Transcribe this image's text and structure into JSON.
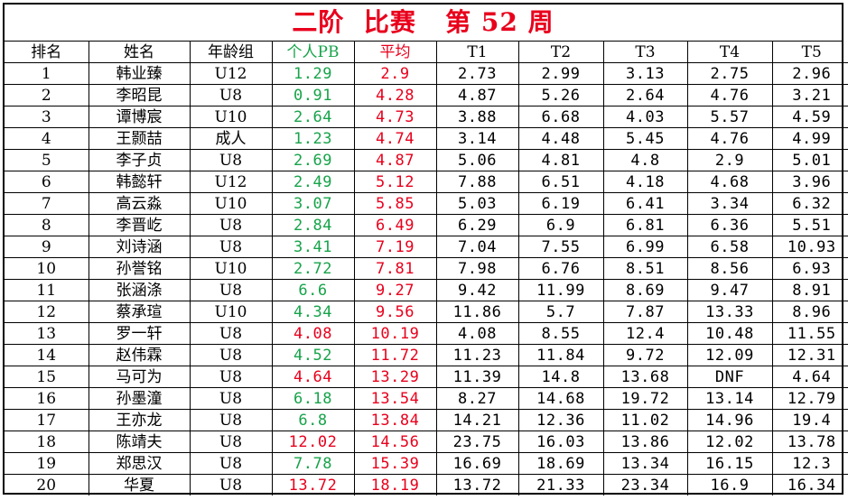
{
  "title": "二阶  比赛   第 52 周",
  "colors": {
    "title": "#e8001c",
    "pb": "#17a34a",
    "avg": "#e8001c",
    "grid": "#000000"
  },
  "headers": [
    "排名",
    "姓名",
    "年龄组",
    "个人PB",
    "平均",
    "T1",
    "T2",
    "T3",
    "T4",
    "T5"
  ],
  "rows": [
    {
      "rank": "1",
      "name": "韩业臻",
      "age": "U12",
      "pb": "1.29",
      "pb_color": "green",
      "avg": "2.9",
      "t1": "2.73",
      "t2": "2.99",
      "t3": "3.13",
      "t4": "2.75",
      "t5": "2.96"
    },
    {
      "rank": "2",
      "name": "李昭昆",
      "age": "U8",
      "pb": "0.91",
      "pb_color": "green",
      "avg": "4.28",
      "t1": "4.87",
      "t2": "5.26",
      "t3": "2.64",
      "t4": "4.76",
      "t5": "3.21"
    },
    {
      "rank": "3",
      "name": "谭博宸",
      "age": "U10",
      "pb": "2.64",
      "pb_color": "green",
      "avg": "4.73",
      "t1": "3.88",
      "t2": "6.68",
      "t3": "4.03",
      "t4": "5.57",
      "t5": "4.59"
    },
    {
      "rank": "4",
      "name": "王颢喆",
      "age": "成人",
      "pb": "1.23",
      "pb_color": "green",
      "avg": "4.74",
      "t1": "3.14",
      "t2": "4.48",
      "t3": "5.45",
      "t4": "4.76",
      "t5": "4.99"
    },
    {
      "rank": "5",
      "name": "李子贞",
      "age": "U8",
      "pb": "2.69",
      "pb_color": "green",
      "avg": "4.87",
      "t1": "5.06",
      "t2": "4.81",
      "t3": "4.8",
      "t4": "2.9",
      "t5": "5.01"
    },
    {
      "rank": "6",
      "name": "韩懿轩",
      "age": "U12",
      "pb": "2.49",
      "pb_color": "green",
      "avg": "5.12",
      "t1": "7.88",
      "t2": "6.51",
      "t3": "4.18",
      "t4": "4.68",
      "t5": "3.96"
    },
    {
      "rank": "7",
      "name": "高云淼",
      "age": "U10",
      "pb": "3.07",
      "pb_color": "green",
      "avg": "5.85",
      "t1": "5.03",
      "t2": "6.19",
      "t3": "6.41",
      "t4": "3.34",
      "t5": "6.32"
    },
    {
      "rank": "8",
      "name": "李晋屹",
      "age": "U8",
      "pb": "2.84",
      "pb_color": "green",
      "avg": "6.49",
      "t1": "6.29",
      "t2": "6.9",
      "t3": "6.81",
      "t4": "6.36",
      "t5": "5.51"
    },
    {
      "rank": "9",
      "name": "刘诗涵",
      "age": "U8",
      "pb": "3.41",
      "pb_color": "green",
      "avg": "7.19",
      "t1": "7.04",
      "t2": "7.55",
      "t3": "6.99",
      "t4": "6.58",
      "t5": "10.93"
    },
    {
      "rank": "10",
      "name": "孙誉铭",
      "age": "U10",
      "pb": "2.72",
      "pb_color": "green",
      "avg": "7.81",
      "t1": "7.98",
      "t2": "6.76",
      "t3": "8.51",
      "t4": "8.56",
      "t5": "6.93"
    },
    {
      "rank": "11",
      "name": "张涵涤",
      "age": "U8",
      "pb": "6.6",
      "pb_color": "green",
      "avg": "9.27",
      "t1": "9.42",
      "t2": "11.99",
      "t3": "8.69",
      "t4": "9.47",
      "t5": "8.91"
    },
    {
      "rank": "12",
      "name": "蔡承瑄",
      "age": "U10",
      "pb": "4.34",
      "pb_color": "green",
      "avg": "9.56",
      "t1": "11.86",
      "t2": "5.7",
      "t3": "7.87",
      "t4": "13.33",
      "t5": "8.96"
    },
    {
      "rank": "13",
      "name": "罗一轩",
      "age": "U8",
      "pb": "4.08",
      "pb_color": "red",
      "avg": "10.19",
      "t1": "4.08",
      "t2": "8.55",
      "t3": "12.4",
      "t4": "10.48",
      "t5": "11.55"
    },
    {
      "rank": "14",
      "name": "赵伟霖",
      "age": "U8",
      "pb": "4.52",
      "pb_color": "green",
      "avg": "11.72",
      "t1": "11.23",
      "t2": "11.84",
      "t3": "9.72",
      "t4": "12.09",
      "t5": "12.31"
    },
    {
      "rank": "15",
      "name": "马可为",
      "age": "U8",
      "pb": "4.64",
      "pb_color": "red",
      "avg": "13.29",
      "t1": "11.39",
      "t2": "14.8",
      "t3": "13.68",
      "t4": "DNF",
      "t5": "4.64"
    },
    {
      "rank": "16",
      "name": "孙墨潼",
      "age": "U8",
      "pb": "6.18",
      "pb_color": "green",
      "avg": "13.54",
      "t1": "8.27",
      "t2": "14.68",
      "t3": "19.72",
      "t4": "13.14",
      "t5": "12.79"
    },
    {
      "rank": "17",
      "name": "王亦龙",
      "age": "U8",
      "pb": "6.8",
      "pb_color": "green",
      "avg": "13.84",
      "t1": "14.21",
      "t2": "12.36",
      "t3": "11.02",
      "t4": "14.96",
      "t5": "19.4"
    },
    {
      "rank": "18",
      "name": "陈靖夫",
      "age": "U8",
      "pb": "12.02",
      "pb_color": "red",
      "avg": "14.56",
      "t1": "23.75",
      "t2": "16.03",
      "t3": "13.86",
      "t4": "12.02",
      "t5": "13.78"
    },
    {
      "rank": "19",
      "name": "郑思汉",
      "age": "U8",
      "pb": "7.78",
      "pb_color": "green",
      "avg": "15.39",
      "t1": "16.69",
      "t2": "18.69",
      "t3": "13.34",
      "t4": "16.15",
      "t5": "12.3"
    },
    {
      "rank": "20",
      "name": "华夏",
      "age": "U8",
      "pb": "13.72",
      "pb_color": "red",
      "avg": "18.19",
      "t1": "13.72",
      "t2": "21.33",
      "t3": "23.34",
      "t4": "16.9",
      "t5": "16.34"
    }
  ]
}
